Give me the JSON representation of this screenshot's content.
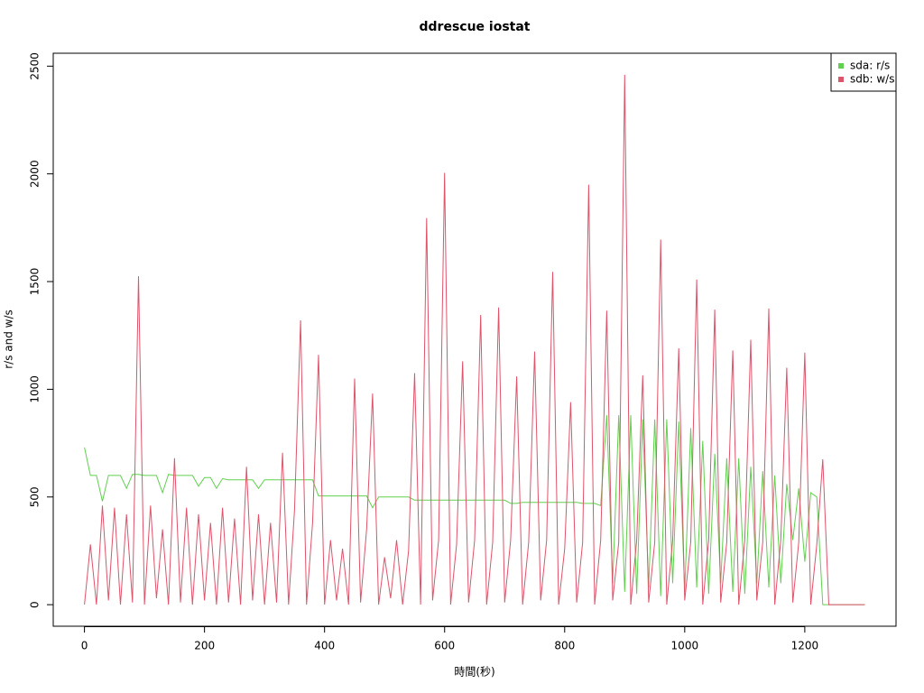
{
  "chart_data": {
    "type": "line",
    "title": "ddrescue iostat",
    "x_label": "時間(秒)",
    "y_label": "r/s and w/s",
    "x": [
      0,
      10,
      20,
      30,
      40,
      50,
      60,
      70,
      80,
      90,
      100,
      110,
      120,
      130,
      140,
      150,
      160,
      170,
      180,
      190,
      200,
      210,
      220,
      230,
      240,
      250,
      260,
      270,
      280,
      290,
      300,
      310,
      320,
      330,
      340,
      350,
      360,
      370,
      380,
      390,
      400,
      410,
      420,
      430,
      440,
      450,
      460,
      470,
      480,
      490,
      500,
      510,
      520,
      530,
      540,
      550,
      560,
      570,
      580,
      590,
      600,
      610,
      620,
      630,
      640,
      650,
      660,
      670,
      680,
      690,
      700,
      710,
      720,
      730,
      740,
      750,
      760,
      770,
      780,
      790,
      800,
      810,
      820,
      830,
      840,
      850,
      860,
      870,
      880,
      890,
      900,
      910,
      920,
      930,
      940,
      950,
      960,
      970,
      980,
      990,
      1000,
      1010,
      1020,
      1030,
      1040,
      1050,
      1060,
      1070,
      1080,
      1090,
      1100,
      1110,
      1120,
      1130,
      1140,
      1150,
      1160,
      1170,
      1180,
      1190,
      1200,
      1210,
      1220,
      1230,
      1240,
      1250,
      1260,
      1270,
      1280,
      1290,
      1300
    ],
    "series": [
      {
        "name": "sda: r/s",
        "color": "#61d04f",
        "values": [
          730,
          600,
          600,
          480,
          600,
          600,
          600,
          540,
          605,
          605,
          600,
          600,
          600,
          520,
          605,
          600,
          600,
          600,
          600,
          550,
          590,
          590,
          540,
          585,
          580,
          580,
          580,
          580,
          580,
          540,
          580,
          580,
          580,
          580,
          580,
          580,
          580,
          580,
          580,
          505,
          505,
          505,
          505,
          505,
          505,
          505,
          505,
          505,
          450,
          500,
          500,
          500,
          500,
          500,
          500,
          485,
          485,
          485,
          485,
          485,
          485,
          485,
          485,
          485,
          485,
          485,
          485,
          485,
          485,
          485,
          485,
          470,
          470,
          475,
          475,
          475,
          475,
          475,
          475,
          475,
          475,
          475,
          475,
          470,
          470,
          470,
          460,
          880,
          100,
          880,
          60,
          880,
          50,
          860,
          80,
          860,
          40,
          860,
          100,
          850,
          60,
          820,
          80,
          760,
          50,
          700,
          100,
          680,
          60,
          680,
          50,
          640,
          100,
          620,
          80,
          600,
          100,
          560,
          300,
          540,
          200,
          520,
          500,
          0,
          0,
          0,
          0,
          0,
          0,
          0,
          0
        ]
      },
      {
        "name": "sdb: w/s",
        "color": "#df536b",
        "values": [
          0,
          280,
          0,
          460,
          20,
          450,
          0,
          420,
          10,
          1525,
          0,
          460,
          30,
          350,
          0,
          680,
          10,
          450,
          0,
          420,
          20,
          380,
          0,
          450,
          10,
          400,
          0,
          640,
          20,
          420,
          0,
          380,
          10,
          705,
          0,
          440,
          1320,
          0,
          380,
          1160,
          0,
          300,
          20,
          260,
          0,
          1050,
          10,
          350,
          980,
          0,
          220,
          30,
          300,
          0,
          250,
          1075,
          0,
          1795,
          20,
          300,
          2005,
          0,
          280,
          1130,
          10,
          300,
          1345,
          0,
          290,
          1380,
          10,
          300,
          1060,
          0,
          290,
          1175,
          20,
          300,
          1545,
          0,
          260,
          940,
          10,
          290,
          1950,
          0,
          300,
          1365,
          20,
          290,
          2460,
          0,
          300,
          1065,
          10,
          290,
          1695,
          0,
          300,
          1190,
          20,
          290,
          1510,
          0,
          300,
          1370,
          10,
          290,
          1180,
          0,
          300,
          1230,
          20,
          290,
          1375,
          0,
          300,
          1100,
          10,
          290,
          1170,
          0,
          280,
          675,
          0,
          0,
          0,
          0,
          0,
          0,
          0
        ]
      }
    ],
    "xlim": [
      -52,
      1352
    ],
    "ylim": [
      -100,
      2560
    ],
    "xticks": [
      0,
      200,
      400,
      600,
      800,
      1000,
      1200
    ],
    "yticks": [
      0,
      500,
      1000,
      1500,
      2000,
      2500
    ],
    "legend": "top-right"
  }
}
